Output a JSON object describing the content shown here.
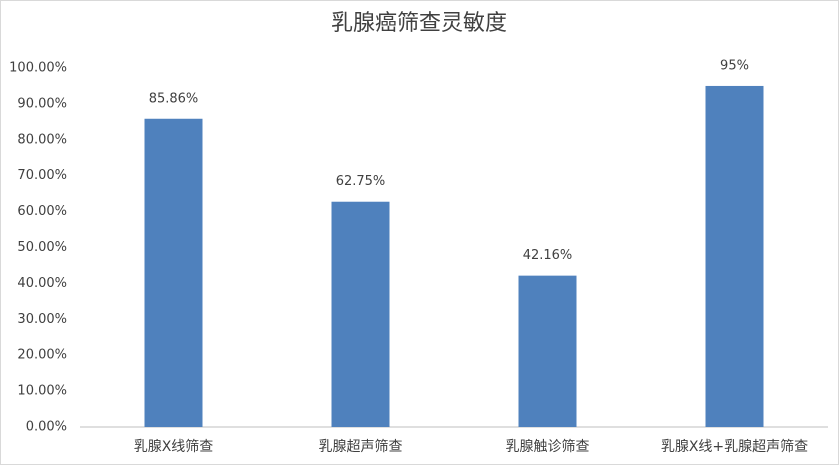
{
  "chart_data": {
    "type": "bar",
    "title": "乳腺癌筛查灵敏度",
    "categories": [
      "乳腺X线筛查",
      "乳腺超声筛查",
      "乳腺触诊筛查",
      "乳腺X线+乳腺超声筛查"
    ],
    "values": [
      85.86,
      62.75,
      42.16,
      95
    ],
    "value_labels": [
      "85.86%",
      "62.75%",
      "42.16%",
      "95%"
    ],
    "color": "#4f81bd",
    "ylim": [
      0,
      100
    ],
    "yticks": [
      {
        "value": 0,
        "label": "0.00%"
      },
      {
        "value": 10,
        "label": "10.00%"
      },
      {
        "value": 20,
        "label": "20.00%"
      },
      {
        "value": 30,
        "label": "30.00%"
      },
      {
        "value": 40,
        "label": "40.00%"
      },
      {
        "value": 50,
        "label": "50.00%"
      },
      {
        "value": 60,
        "label": "60.00%"
      },
      {
        "value": 70,
        "label": "70.00%"
      },
      {
        "value": 80,
        "label": "80.00%"
      },
      {
        "value": 90,
        "label": "90.00%"
      },
      {
        "value": 100,
        "label": "100.00%"
      }
    ],
    "grid": false
  }
}
